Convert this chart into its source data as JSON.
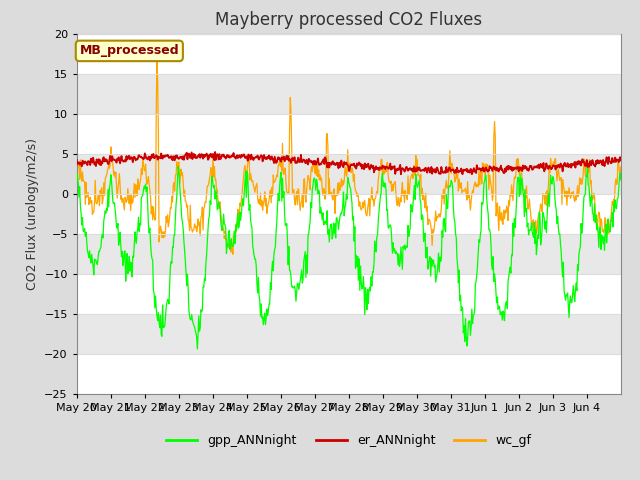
{
  "title": "Mayberry processed CO2 Fluxes",
  "ylabel": "CO2 Flux (urology/m2/s)",
  "ylim": [
    -25,
    20
  ],
  "yticks": [
    -25,
    -20,
    -15,
    -10,
    -5,
    0,
    5,
    10,
    15,
    20
  ],
  "line_colors": {
    "gpp": "#00FF00",
    "er": "#CC0000",
    "wc": "#FFA500"
  },
  "legend_labels": [
    "gpp_ANNnight",
    "er_ANNnight",
    "wc_gf"
  ],
  "annotation_text": "MB_processed",
  "annotation_bg": "#FFFFCC",
  "annotation_border": "#AA8800",
  "annotation_text_color": "#880000",
  "bg_color": "#DCDCDC",
  "plot_bg": "#FFFFFF",
  "band_color": "#E0E0E0",
  "grid_color": "#DCDCDC",
  "n_days": 16,
  "points_per_day": 48,
  "title_fontsize": 12,
  "axis_fontsize": 9,
  "tick_fontsize": 8
}
